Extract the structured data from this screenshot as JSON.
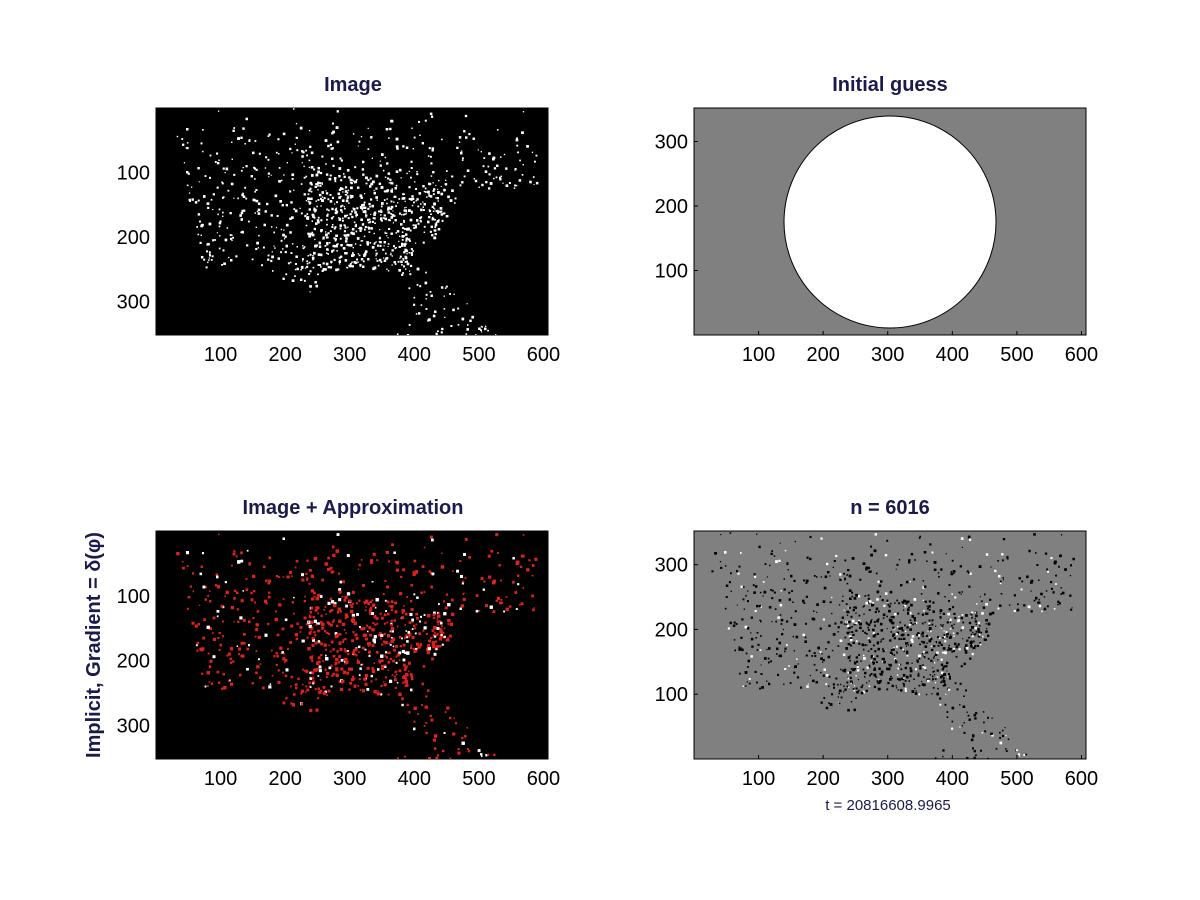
{
  "chart_data": [
    {
      "type": "heatmap",
      "title": "Image",
      "xticks": [
        100,
        200,
        300,
        400,
        500,
        600
      ],
      "yticks": [
        100,
        200,
        300
      ],
      "xlim": [
        0,
        607
      ],
      "ylim": [
        0,
        352
      ],
      "y_direction": "reverse",
      "colors": {
        "background": "#000000",
        "features": "#ffffff"
      }
    },
    {
      "type": "heatmap",
      "title": "Initial guess",
      "xticks": [
        100,
        200,
        300,
        400,
        500,
        600
      ],
      "yticks": [
        100,
        200,
        300
      ],
      "xlim": [
        0,
        607
      ],
      "ylim": [
        0,
        352
      ],
      "y_direction": "normal",
      "colors": {
        "background": "#808080",
        "inside": "#ffffff",
        "contour": "#000000"
      }
    },
    {
      "type": "heatmap",
      "title": "Image + Approximation",
      "ylabel": "Implicit,  Gradient = δ(φ)",
      "xticks": [
        100,
        200,
        300,
        400,
        500,
        600
      ],
      "yticks": [
        100,
        200,
        300
      ],
      "xlim": [
        0,
        607
      ],
      "ylim": [
        0,
        352
      ],
      "y_direction": "reverse",
      "colors": {
        "background": "#000000",
        "features": "#ffffff",
        "approximation": "#e0201a"
      }
    },
    {
      "type": "heatmap",
      "title": "n = 6016",
      "xlabel": "t = 20816608.9965",
      "xticks": [
        100,
        200,
        300,
        400,
        500,
        600
      ],
      "yticks": [
        100,
        200,
        300
      ],
      "xlim": [
        0,
        607
      ],
      "ylim": [
        0,
        352
      ],
      "y_direction": "normal",
      "colors": {
        "background": "#808080",
        "contour": "#000000",
        "inside": "#ffffff"
      }
    }
  ]
}
